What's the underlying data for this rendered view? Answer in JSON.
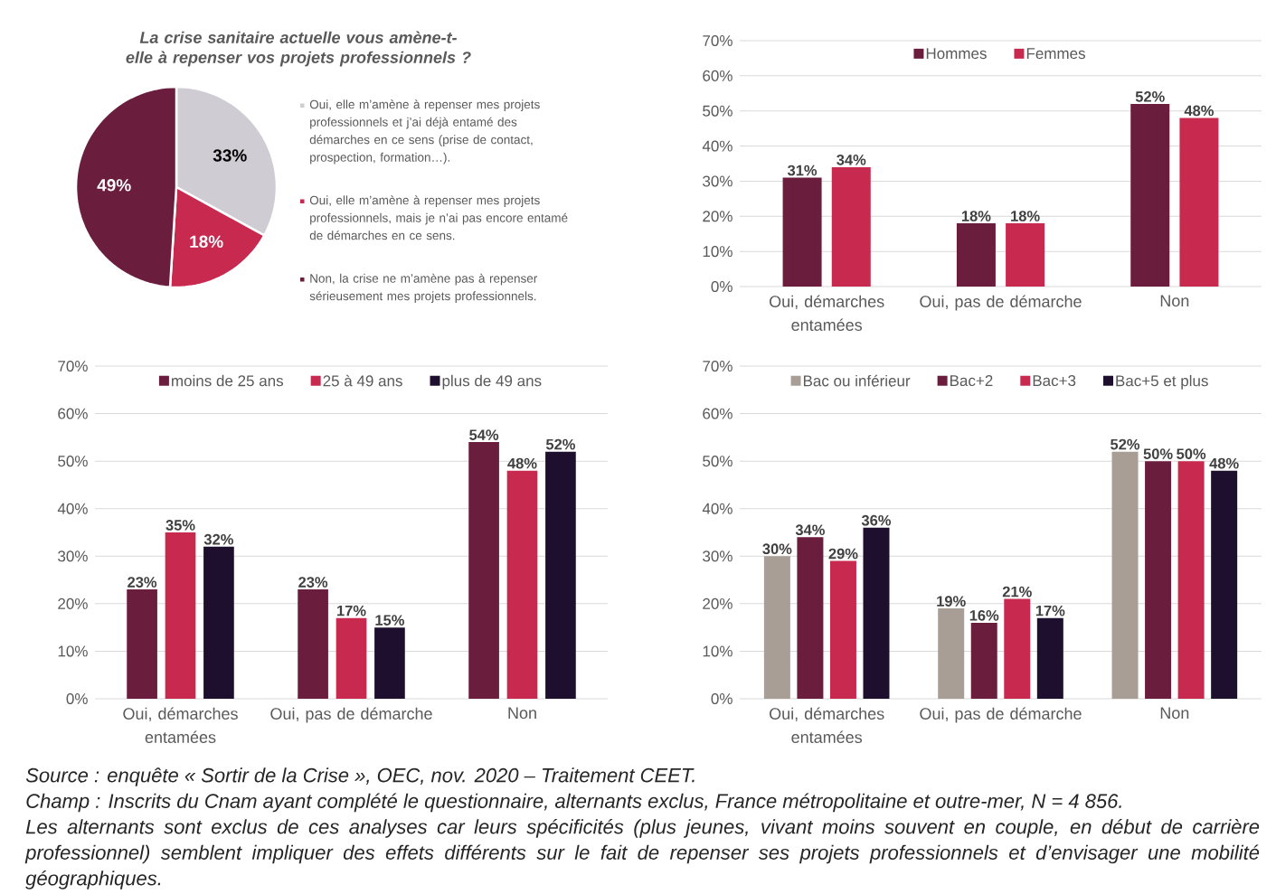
{
  "chart_data": [
    {
      "type": "pie",
      "title": "La crise sanitaire actuelle vous amène-t-elle à repenser vos projets professionnels ?",
      "categories": [
        "Oui, elle m’amène à repenser mes projets professionnels et j’ai déjà entamé des démarches en ce sens (prise de contact, prospection, formation…).",
        "Oui, elle m’amène à repenser mes projets professionnels, mais je n’ai pas encore entamé de démarches en ce sens.",
        "Non, la crise ne m’amène pas à repenser sérieusement mes projets professionnels."
      ],
      "values": [
        33,
        18,
        49
      ],
      "value_labels": [
        "33%",
        "18%",
        "49%"
      ],
      "colors": [
        "#d0ccd4",
        "#c8294f",
        "#6b1d3d"
      ],
      "legend": "right"
    },
    {
      "type": "bar",
      "categories": [
        "Oui, démarches entamées",
        "Oui, pas de démarche",
        "Non"
      ],
      "series": [
        {
          "name": "Hommes",
          "color": "#6b1d3d",
          "values": [
            31,
            18,
            52
          ],
          "value_labels": [
            "31%",
            "18%",
            "52%"
          ]
        },
        {
          "name": "Femmes",
          "color": "#c8294f",
          "values": [
            34,
            18,
            48
          ],
          "value_labels": [
            "34%",
            "18%",
            "48%"
          ]
        }
      ],
      "ylim": [
        0,
        70
      ],
      "yticks": [
        {
          "value": 0,
          "label": "0%"
        },
        {
          "value": 10,
          "label": "10%"
        },
        {
          "value": 20,
          "label": "20%"
        },
        {
          "value": 30,
          "label": "30%"
        },
        {
          "value": 40,
          "label": "40%"
        },
        {
          "value": 50,
          "label": "50%"
        },
        {
          "value": 60,
          "label": "60%"
        },
        {
          "value": 70,
          "label": "70%"
        }
      ],
      "grid": "y",
      "legend": "top"
    },
    {
      "type": "bar",
      "categories": [
        "Oui, démarches entamées",
        "Oui, pas de démarche",
        "Non"
      ],
      "series": [
        {
          "name": "moins de 25 ans",
          "color": "#6b1d3d",
          "values": [
            23,
            23,
            54
          ],
          "value_labels": [
            "23%",
            "23%",
            "54%"
          ]
        },
        {
          "name": "25 à 49 ans",
          "color": "#c8294f",
          "values": [
            35,
            17,
            48
          ],
          "value_labels": [
            "35%",
            "17%",
            "48%"
          ]
        },
        {
          "name": "plus de 49 ans",
          "color": "#1f0f2e",
          "values": [
            32,
            15,
            52
          ],
          "value_labels": [
            "32%",
            "15%",
            "52%"
          ]
        }
      ],
      "ylim": [
        0,
        70
      ],
      "yticks": [
        {
          "value": 0,
          "label": "0%"
        },
        {
          "value": 10,
          "label": "10%"
        },
        {
          "value": 20,
          "label": "20%"
        },
        {
          "value": 30,
          "label": "30%"
        },
        {
          "value": 40,
          "label": "40%"
        },
        {
          "value": 50,
          "label": "50%"
        },
        {
          "value": 60,
          "label": "60%"
        },
        {
          "value": 70,
          "label": "70%"
        }
      ],
      "grid": "y",
      "legend": "top"
    },
    {
      "type": "bar",
      "categories": [
        "Oui, démarches entamées",
        "Oui, pas de démarche",
        "Non"
      ],
      "series": [
        {
          "name": "Bac ou inférieur",
          "color": "#a89e96",
          "values": [
            30,
            19,
            52
          ],
          "value_labels": [
            "30%",
            "19%",
            "52%"
          ]
        },
        {
          "name": "Bac+2",
          "color": "#6b1d3d",
          "values": [
            34,
            16,
            50
          ],
          "value_labels": [
            "34%",
            "16%",
            "50%"
          ]
        },
        {
          "name": "Bac+3",
          "color": "#c8294f",
          "values": [
            29,
            21,
            50
          ],
          "value_labels": [
            "29%",
            "21%",
            "50%"
          ]
        },
        {
          "name": "Bac+5 et plus",
          "color": "#1f0f2e",
          "values": [
            36,
            17,
            48
          ],
          "value_labels": [
            "36%",
            "17%",
            "48%"
          ]
        }
      ],
      "ylim": [
        0,
        70
      ],
      "yticks": [
        {
          "value": 0,
          "label": "0%"
        },
        {
          "value": 10,
          "label": "10%"
        },
        {
          "value": 20,
          "label": "20%"
        },
        {
          "value": 30,
          "label": "30%"
        },
        {
          "value": 40,
          "label": "40%"
        },
        {
          "value": 50,
          "label": "50%"
        },
        {
          "value": 60,
          "label": "60%"
        },
        {
          "value": 70,
          "label": "70%"
        }
      ],
      "grid": "y",
      "legend": "top",
      "annotations": [
        "Source : enquête « Sortir de la Crise », OEC, nov. 2020 – Traitement CEET.",
        "Champ : Inscrits du Cnam ayant complété le questionnaire, alternants exclus, France métropolitaine et outre-mer, N = 4 856.",
        "Les alternants sont exclus de ces analyses car leurs spécificités (plus jeunes, vivant moins souvent en couple, en début de carrière professionnel) semblent impliquer des effets différents sur le fait de repenser ses projets professionnels et d’envisager une mobilité géographiques."
      ]
    }
  ]
}
